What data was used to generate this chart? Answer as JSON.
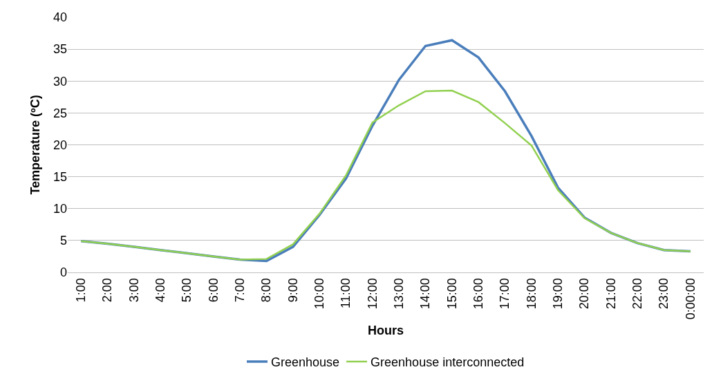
{
  "chart_data": {
    "type": "line",
    "xlabel": "Hours",
    "ylabel": "Temperature (ºC)",
    "categories": [
      "1:00",
      "2:00",
      "3:00",
      "4:00",
      "5:00",
      "6:00",
      "7:00",
      "8:00",
      "9:00",
      "10:00",
      "11:00",
      "12:00",
      "13:00",
      "14:00",
      "15:00",
      "16:00",
      "17:00",
      "18:00",
      "19:00",
      "20:00",
      "21:00",
      "22:00",
      "23:00",
      "0:00:00"
    ],
    "series": [
      {
        "name": "Greenhouse",
        "color": "#4a7ebb",
        "values": [
          4.9,
          4.5,
          4.0,
          3.5,
          3.0,
          2.5,
          2.0,
          1.8,
          4.0,
          9.0,
          14.7,
          23.0,
          30.2,
          35.5,
          36.4,
          33.7,
          28.4,
          21.4,
          13.3,
          8.6,
          6.2,
          4.6,
          3.5,
          3.3
        ]
      },
      {
        "name": "Greenhouse interconnected",
        "color": "#92d050",
        "values": [
          4.9,
          4.5,
          4.0,
          3.5,
          3.0,
          2.5,
          2.0,
          2.1,
          4.4,
          9.2,
          15.2,
          23.5,
          26.2,
          28.4,
          28.5,
          26.7,
          23.4,
          19.9,
          12.9,
          8.5,
          6.2,
          4.6,
          3.5,
          3.3
        ]
      }
    ],
    "ylim": [
      0,
      40
    ],
    "yticks": [
      0,
      5,
      10,
      15,
      20,
      25,
      30,
      35,
      40
    ],
    "grid": "y",
    "legend": "bottom",
    "marker": "none",
    "line_style": "solid"
  }
}
